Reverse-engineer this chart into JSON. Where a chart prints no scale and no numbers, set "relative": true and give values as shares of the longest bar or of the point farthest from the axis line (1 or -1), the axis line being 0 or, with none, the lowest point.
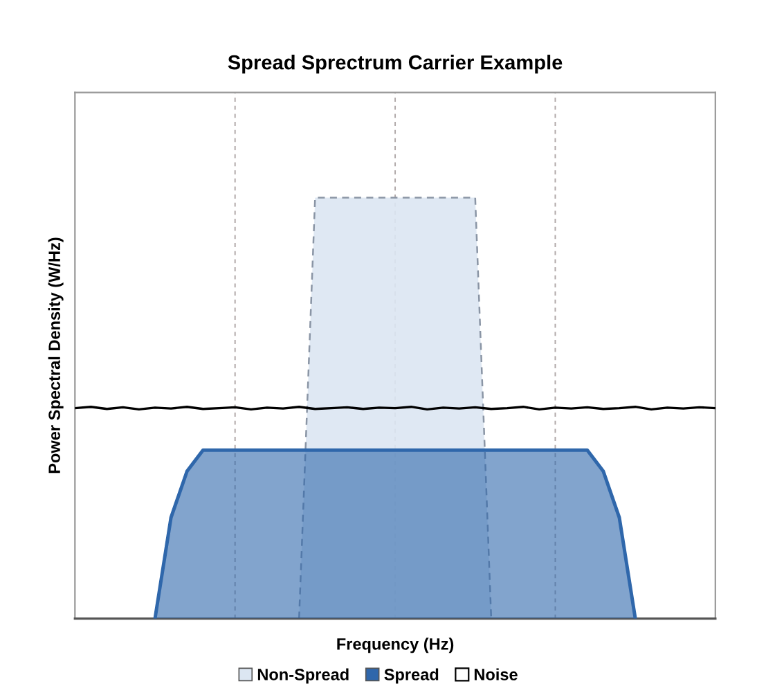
{
  "chart_data": {
    "type": "area",
    "title": "Spread Sprectrum Carrier Example",
    "xlabel": "Frequency (Hz)",
    "ylabel": "Power Spectral Density (W/Hz)",
    "relative": true,
    "grid": "x",
    "tick_labels": false,
    "legend": "bottom",
    "categories": [
      null,
      null,
      null,
      null,
      null,
      null,
      null,
      null,
      null,
      null,
      null,
      null,
      null,
      null,
      null,
      null,
      null,
      null,
      null,
      null,
      null,
      null,
      null,
      null,
      null,
      null,
      null,
      null,
      null,
      null,
      null,
      null,
      null,
      null,
      null,
      null,
      null,
      null,
      null,
      null,
      null
    ],
    "series": [
      {
        "name": "Non-Spread",
        "color": "#dce6f2",
        "line_style": "dashed",
        "values": [
          null,
          null,
          null,
          null,
          null,
          null,
          null,
          null,
          null,
          null,
          null,
          null,
          null,
          null,
          0,
          1,
          1,
          1,
          1,
          1,
          1,
          1,
          1,
          1,
          1,
          1,
          0,
          null,
          null,
          null,
          null,
          null,
          null,
          null,
          null,
          null,
          null,
          null,
          null,
          null,
          null
        ]
      },
      {
        "name": "Spread",
        "color": "#2f67ab",
        "line_style": "solid",
        "values": [
          null,
          null,
          null,
          null,
          null,
          0,
          0.24,
          0.35,
          0.4,
          0.4,
          0.4,
          0.4,
          0.4,
          0.4,
          0.4,
          0.4,
          0.4,
          0.4,
          0.4,
          0.4,
          0.4,
          0.4,
          0.4,
          0.4,
          0.4,
          0.4,
          0.4,
          0.4,
          0.4,
          0.4,
          0.4,
          0.4,
          0.4,
          0.35,
          0.24,
          0,
          null,
          null,
          null,
          null,
          null
        ]
      },
      {
        "name": "Noise",
        "type": "line",
        "color": "#000000",
        "line_style": "solid",
        "values": [
          0.5,
          0.503,
          0.498,
          0.502,
          0.497,
          0.501,
          0.499,
          0.503,
          0.498,
          0.5,
          0.502,
          0.497,
          0.501,
          0.499,
          0.503,
          0.498,
          0.5,
          0.502,
          0.498,
          0.501,
          0.5,
          0.503,
          0.497,
          0.501,
          0.499,
          0.502,
          0.498,
          0.5,
          0.503,
          0.497,
          0.501,
          0.499,
          0.502,
          0.498,
          0.5,
          0.503,
          0.497,
          0.501,
          0.499,
          0.502,
          0.5
        ]
      }
    ]
  }
}
